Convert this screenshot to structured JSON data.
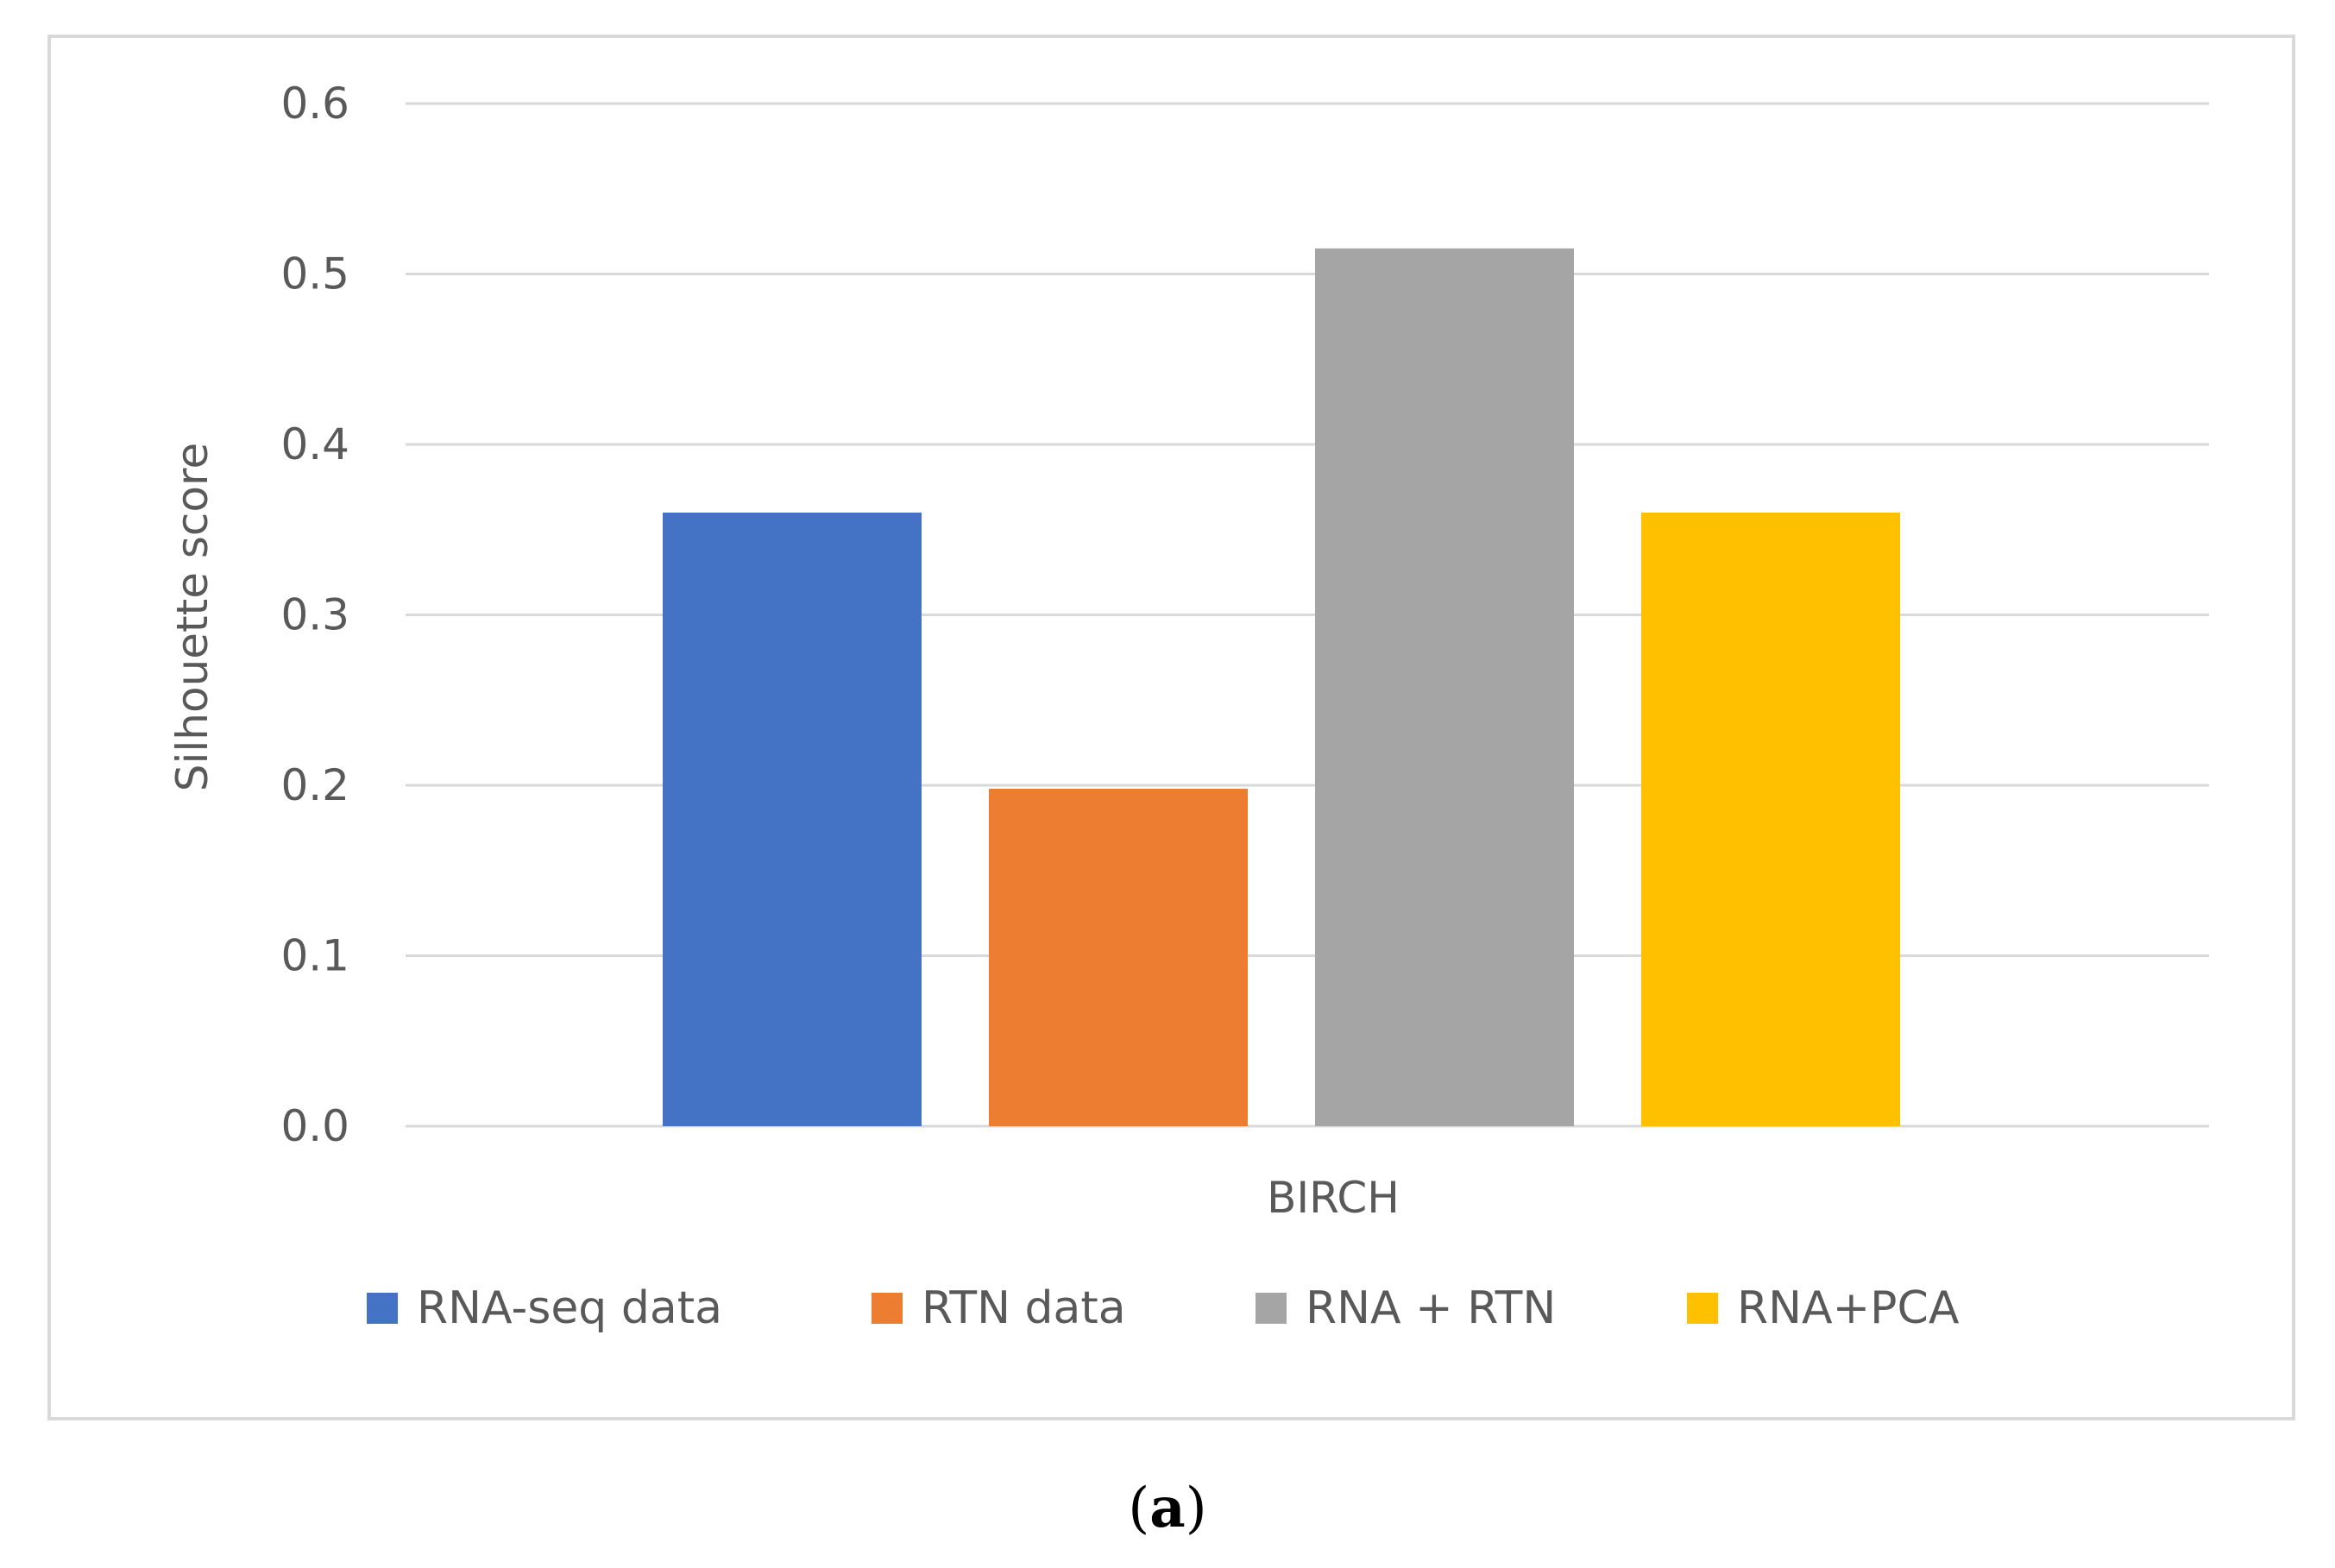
{
  "chart_data": {
    "type": "bar",
    "title": "",
    "xlabel": "",
    "ylabel": "Silhouette score",
    "categories": [
      "BIRCH"
    ],
    "series": [
      {
        "name": "RNA-seq data",
        "values": [
          0.36
        ],
        "color": "#4472C4"
      },
      {
        "name": "RTN data",
        "values": [
          0.198
        ],
        "color": "#ED7D31"
      },
      {
        "name": "RNA + RTN",
        "values": [
          0.515
        ],
        "color": "#A5A5A5"
      },
      {
        "name": "RNA+PCA",
        "values": [
          0.36
        ],
        "color": "#FFC000"
      }
    ],
    "ylim": [
      0,
      0.6
    ],
    "yticks": [
      "0.0",
      "0.1",
      "0.2",
      "0.3",
      "0.4",
      "0.5",
      "0.6"
    ],
    "grid": true,
    "legend_position": "bottom"
  },
  "panel_label": {
    "open": "(",
    "letter": "a",
    "close": ")"
  },
  "colors": {
    "grid": "#d9d9d9",
    "frame": "#d9d9d9",
    "text": "#595959"
  }
}
